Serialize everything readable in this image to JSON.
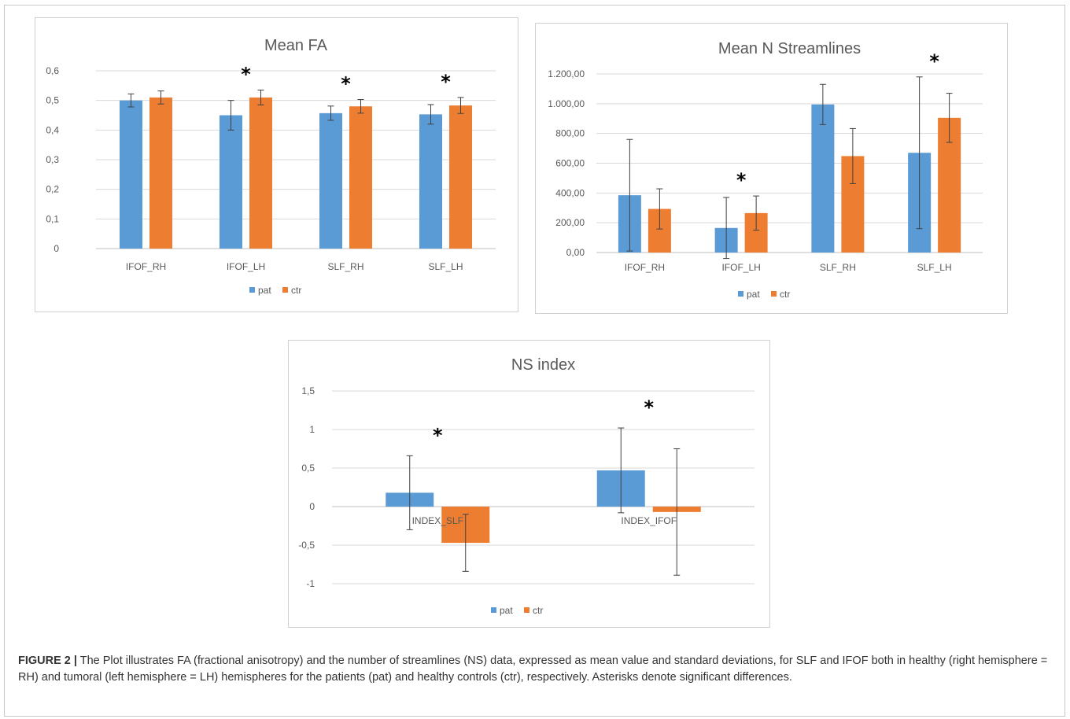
{
  "colors": {
    "pat": "#5b9bd5",
    "ctr": "#ed7d31",
    "grid": "#d9d9d9",
    "axis": "#bfbfbf",
    "text": "#595959",
    "errbar": "#404040"
  },
  "legend": {
    "pat": "pat",
    "ctr": "ctr"
  },
  "caption": {
    "label": "FIGURE 2 |",
    "text": "The Plot illustrates FA (fractional anisotropy) and the number of streamlines (NS) data, expressed as mean value and standard deviations, for SLF and IFOF both in healthy (right hemisphere = RH) and tumoral (left hemisphere = LH) hemispheres for the patients (pat) and healthy controls (ctr), respectively. Asterisks denote significant differences."
  },
  "chart_data": [
    {
      "type": "bar",
      "title": "Mean FA",
      "categories": [
        "IFOF_RH",
        "IFOF_LH",
        "SLF_RH",
        "SLF_LH"
      ],
      "series": [
        {
          "name": "pat",
          "values": [
            0.5,
            0.45,
            0.457,
            0.453
          ],
          "errors": [
            0.022,
            0.05,
            0.024,
            0.033
          ]
        },
        {
          "name": "ctr",
          "values": [
            0.51,
            0.51,
            0.48,
            0.483
          ],
          "errors": [
            0.022,
            0.025,
            0.023,
            0.027
          ]
        }
      ],
      "ylim": [
        0,
        0.6
      ],
      "yticks": [
        0,
        0.1,
        0.2,
        0.3,
        0.4,
        0.5,
        0.6
      ],
      "ytick_labels": [
        "0",
        "0,1",
        "0,2",
        "0,3",
        "0,4",
        "0,5",
        "0,6"
      ],
      "significant": [
        false,
        true,
        true,
        true
      ],
      "asterisk": "*",
      "grid": true,
      "legend_position": "bottom"
    },
    {
      "type": "bar",
      "title": "Mean N Streamlines",
      "categories": [
        "IFOF_RH",
        "IFOF_LH",
        "SLF_RH",
        "SLF_LH"
      ],
      "series": [
        {
          "name": "pat",
          "values": [
            385,
            165,
            995,
            670
          ],
          "errors": [
            375,
            205,
            135,
            510
          ]
        },
        {
          "name": "ctr",
          "values": [
            293,
            265,
            648,
            905
          ],
          "errors": [
            135,
            115,
            185,
            165
          ]
        }
      ],
      "ylim": [
        0,
        1200
      ],
      "yticks": [
        0,
        200,
        400,
        600,
        800,
        1000,
        1200
      ],
      "ytick_labels": [
        "0,00",
        "200,00",
        "400,00",
        "600,00",
        "800,00",
        "1.000,00",
        "1.200,00"
      ],
      "significant": [
        false,
        true,
        false,
        true
      ],
      "asterisk": "*",
      "grid": true,
      "legend_position": "bottom"
    },
    {
      "type": "bar",
      "title": "NS index",
      "categories": [
        "INDEX_SLF",
        "INDEX_IFOF"
      ],
      "series": [
        {
          "name": "pat",
          "values": [
            0.18,
            0.47
          ],
          "errors": [
            0.48,
            0.55
          ]
        },
        {
          "name": "ctr",
          "values": [
            -0.47,
            -0.07
          ],
          "errors": [
            0.37,
            0.82
          ]
        }
      ],
      "ylim": [
        -1,
        1.5
      ],
      "yticks": [
        -1,
        -0.5,
        0,
        0.5,
        1,
        1.5
      ],
      "ytick_labels": [
        "-1",
        "-0,5",
        "0",
        "0,5",
        "1",
        "1,5"
      ],
      "significant": [
        true,
        true
      ],
      "asterisk": "*",
      "grid": true,
      "legend_position": "bottom"
    }
  ]
}
